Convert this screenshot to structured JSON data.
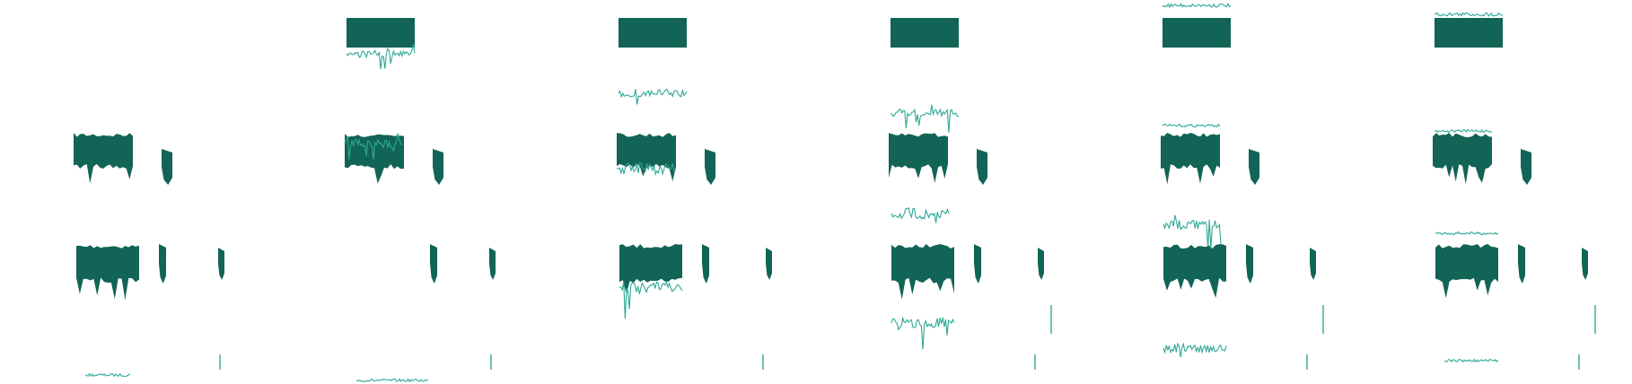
{
  "figure": {
    "panel_count": 6,
    "colors": {
      "background": "#ffffff",
      "dark_fill": "#126456",
      "trace": "#2ea896"
    }
  }
}
